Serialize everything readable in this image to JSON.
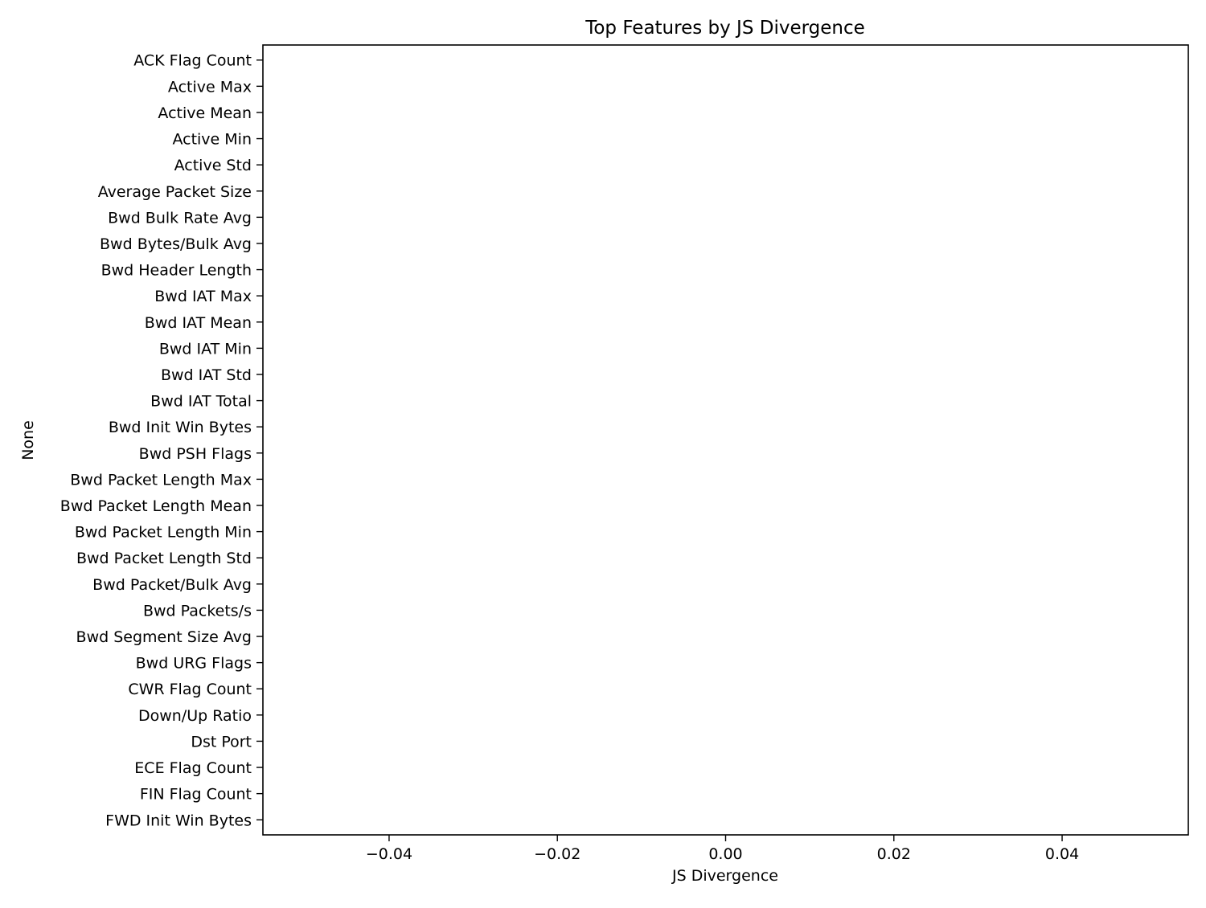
{
  "chart_data": {
    "type": "bar",
    "orientation": "horizontal",
    "title": "Top Features by JS Divergence",
    "xlabel": "JS Divergence",
    "ylabel": "None",
    "categories": [
      "ACK Flag Count",
      "Active Max",
      "Active Mean",
      "Active Min",
      "Active Std",
      "Average Packet Size",
      "Bwd Bulk Rate Avg",
      "Bwd Bytes/Bulk Avg",
      "Bwd Header Length",
      "Bwd IAT Max",
      "Bwd IAT Mean",
      "Bwd IAT Min",
      "Bwd IAT Std",
      "Bwd IAT Total",
      "Bwd Init Win Bytes",
      "Bwd PSH Flags",
      "Bwd Packet Length Max",
      "Bwd Packet Length Mean",
      "Bwd Packet Length Min",
      "Bwd Packet Length Std",
      "Bwd Packet/Bulk Avg",
      "Bwd Packets/s",
      "Bwd Segment Size Avg",
      "Bwd URG Flags",
      "CWR Flag Count",
      "Down/Up Ratio",
      "Dst Port",
      "ECE Flag Count",
      "FIN Flag Count",
      "FWD Init Win Bytes"
    ],
    "values": [
      0,
      0,
      0,
      0,
      0,
      0,
      0,
      0,
      0,
      0,
      0,
      0,
      0,
      0,
      0,
      0,
      0,
      0,
      0,
      0,
      0,
      0,
      0,
      0,
      0,
      0,
      0,
      0,
      0,
      0
    ],
    "xlim": [
      -0.055,
      0.055
    ],
    "xticks": [
      -0.04,
      -0.02,
      0.0,
      0.02,
      0.04
    ],
    "xtick_labels": [
      "−0.04",
      "−0.02",
      "0.00",
      "0.02",
      "0.04"
    ],
    "grid": false,
    "bar_color": "#1f77b4"
  }
}
